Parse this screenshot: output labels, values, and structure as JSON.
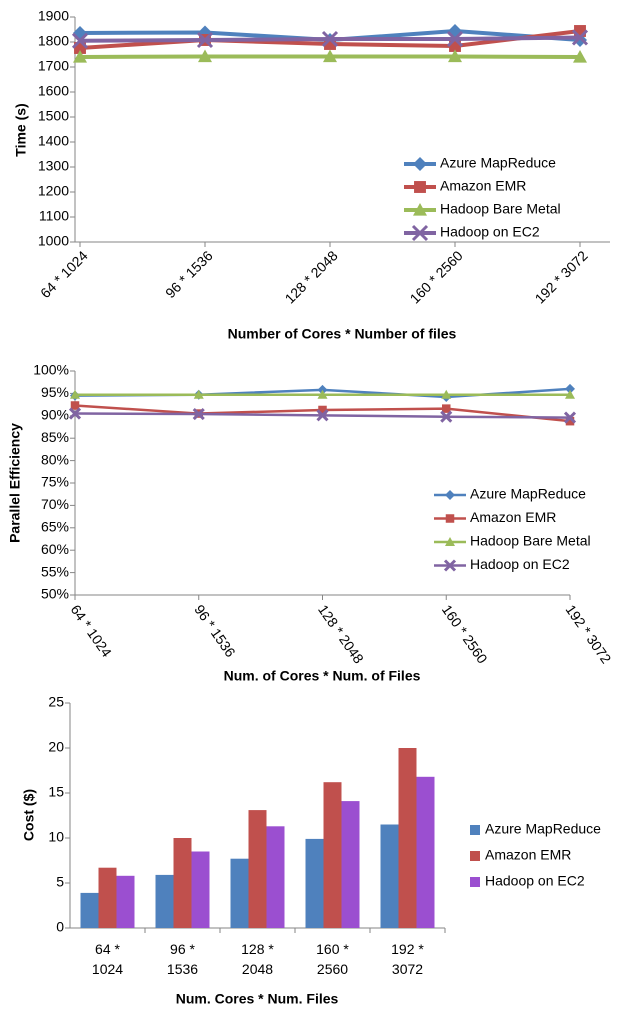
{
  "chart_data": [
    {
      "type": "line",
      "y_label": "Time (s)",
      "x_label": "Number of Cores * Number of files",
      "categories": [
        "64 * 1024",
        "96 * 1536",
        "128 * 2048",
        "160 * 2560",
        "192 * 3072"
      ],
      "ylim": [
        1000,
        1900
      ],
      "yticks": [
        1000,
        1100,
        1200,
        1300,
        1400,
        1500,
        1600,
        1700,
        1800,
        1900
      ],
      "grid": false,
      "legend": "lower right",
      "series": [
        {
          "name": "Azure MapReduce",
          "color": "#4f81bd",
          "marker": "diamond",
          "values": [
            1836,
            1838,
            1808,
            1844,
            1808
          ]
        },
        {
          "name": "Amazon EMR",
          "color": "#c0504d",
          "marker": "square",
          "values": [
            1776,
            1808,
            1792,
            1784,
            1844
          ]
        },
        {
          "name": "Hadoop Bare Metal",
          "color": "#9bbb59",
          "marker": "triangle",
          "values": [
            1740,
            1742,
            1742,
            1742,
            1740
          ]
        },
        {
          "name": "Hadoop on EC2",
          "color": "#8064a2",
          "marker": "x",
          "values": [
            1805,
            1808,
            1812,
            1812,
            1818
          ]
        }
      ]
    },
    {
      "type": "line",
      "y_label": "Parallel Efficiency",
      "x_label": "Num. of Cores * Num. of Files",
      "categories": [
        "64 * 1024",
        "96 * 1536",
        "128 * 2048",
        "160 * 2560",
        "192 * 3072"
      ],
      "ylim": [
        50,
        100
      ],
      "yticks": [
        {
          "value": 50,
          "label": "50%"
        },
        {
          "value": 55,
          "label": "55%"
        },
        {
          "value": 60,
          "label": "60%"
        },
        {
          "value": 65,
          "label": "65%"
        },
        {
          "value": 70,
          "label": "70%"
        },
        {
          "value": 75,
          "label": "75%"
        },
        {
          "value": 80,
          "label": "80%"
        },
        {
          "value": 85,
          "label": "85%"
        },
        {
          "value": 90,
          "label": "90%"
        },
        {
          "value": 95,
          "label": "95%"
        },
        {
          "value": 100,
          "label": "100%"
        }
      ],
      "grid": false,
      "legend": "lower right",
      "series": [
        {
          "name": "Azure MapReduce",
          "color": "#4f81bd",
          "marker": "diamond",
          "values": [
            94.5,
            94.7,
            95.8,
            94.2,
            96.0
          ]
        },
        {
          "name": "Amazon EMR",
          "color": "#c0504d",
          "marker": "square",
          "values": [
            92.3,
            90.5,
            91.3,
            91.6,
            88.8
          ]
        },
        {
          "name": "Hadoop Bare Metal",
          "color": "#9bbb59",
          "marker": "triangle",
          "values": [
            94.7,
            94.7,
            94.7,
            94.7,
            94.7
          ]
        },
        {
          "name": "Hadoop on EC2",
          "color": "#8064a2",
          "marker": "x",
          "values": [
            90.5,
            90.4,
            90.1,
            89.8,
            89.6
          ]
        }
      ]
    },
    {
      "type": "bar",
      "y_label": "Cost ($)",
      "x_label": "Num. Cores * Num. Files",
      "categories": [
        "64 * 1024",
        "96 * 1536",
        "128 * 2048",
        "160 * 2560",
        "192 * 3072"
      ],
      "ylim": [
        0,
        25
      ],
      "yticks": [
        0,
        5,
        10,
        15,
        20,
        25
      ],
      "grid": false,
      "legend": "right",
      "series": [
        {
          "name": "Azure MapReduce",
          "color": "#4f81bd",
          "values": [
            3.9,
            5.9,
            7.7,
            9.9,
            11.5
          ]
        },
        {
          "name": "Amazon EMR",
          "color": "#c0504d",
          "values": [
            6.7,
            10.0,
            13.1,
            16.2,
            20.0
          ]
        },
        {
          "name": "Hadoop on EC2",
          "color": "#9b4fd0",
          "values": [
            5.8,
            8.5,
            11.3,
            14.1,
            16.8
          ]
        }
      ]
    }
  ]
}
